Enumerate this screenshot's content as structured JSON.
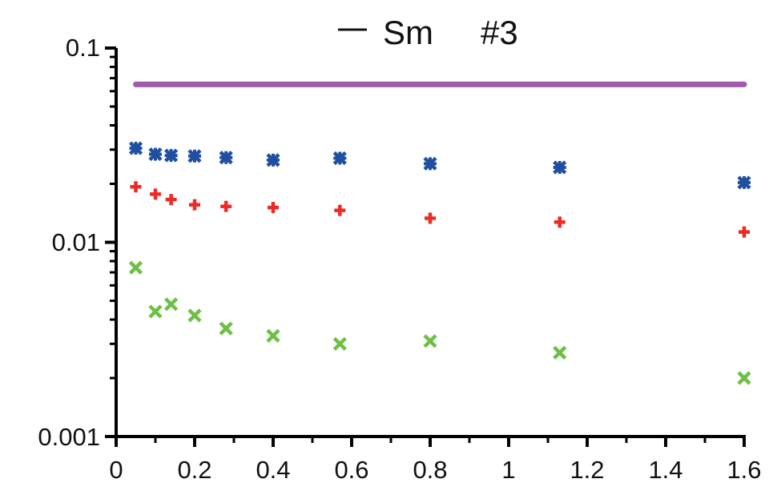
{
  "chart_data": {
    "type": "scatter",
    "x_ticks": [
      "0",
      "0.2",
      "0.4",
      "0.6",
      "0.8",
      "1",
      "1.2",
      "1.4",
      "1.6"
    ],
    "y_ticks": [
      "0.1",
      "0.01",
      "0.001"
    ],
    "xlim": [
      0,
      1.6
    ],
    "ylim": [
      0.001,
      0.1
    ],
    "y_scale": "log",
    "grid": false,
    "legend": {
      "position": "top-center",
      "entries": [
        "Sm",
        "#3"
      ]
    },
    "series": [
      {
        "marker": "asterisk",
        "color": "#1f4fa0",
        "x": [
          0.05,
          0.1,
          0.14,
          0.2,
          0.28,
          0.4,
          0.57,
          0.8,
          1.13,
          1.6
        ],
        "y": [
          0.0305,
          0.0284,
          0.028,
          0.0278,
          0.0273,
          0.0265,
          0.0271,
          0.0254,
          0.0243,
          0.0203
        ]
      },
      {
        "marker": "plus",
        "color": "#ee2a24",
        "x": [
          0.05,
          0.1,
          0.14,
          0.2,
          0.28,
          0.4,
          0.57,
          0.8,
          1.13,
          1.6
        ],
        "y": [
          0.0193,
          0.0177,
          0.0166,
          0.0156,
          0.0153,
          0.0151,
          0.0146,
          0.0133,
          0.0127,
          0.0113
        ]
      },
      {
        "marker": "x",
        "color": "#6dbf45",
        "x": [
          0.05,
          0.1,
          0.14,
          0.2,
          0.28,
          0.4,
          0.57,
          0.8,
          1.13,
          1.6
        ],
        "y": [
          0.0074,
          0.0044,
          0.0048,
          0.0042,
          0.0036,
          0.0033,
          0.003,
          0.0031,
          0.0027,
          0.002
        ]
      },
      {
        "marker": "line",
        "name": "Sm",
        "color": "#a05aac",
        "x": [
          0.05,
          1.6
        ],
        "y": [
          0.065,
          0.065
        ]
      }
    ]
  }
}
